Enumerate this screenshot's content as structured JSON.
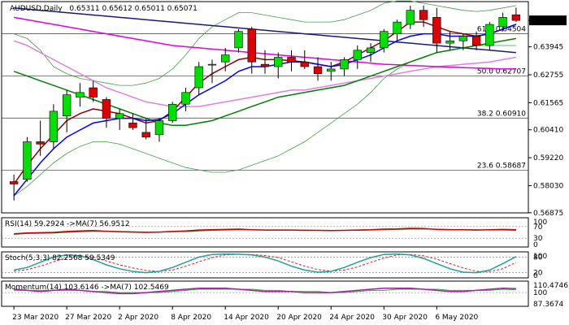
{
  "header": {
    "symbol_label": "AUDUSD,Daily",
    "ohlc_label": "0.65311 0.65612 0.65011 0.65071"
  },
  "colors": {
    "bull": "#00e000",
    "bear": "#e00000",
    "ma_fast": "#0000ff",
    "ma_mid": "#8b0000",
    "ma_slow": "#008000",
    "ma_long": "#e000e0",
    "bb_upper": "#1a1a7a",
    "bb_mid": "#e080e0",
    "bb_env": "#40a040",
    "rsi": "#cc0000",
    "rsi_ma": "#556b2f",
    "stoch_main": "#20a0a0",
    "stoch_signal": "#e02020",
    "mom": "#a020a0",
    "mom_ma": "#40a040"
  },
  "chart_data": {
    "type": "candlestick",
    "ylim": [
      0.5687,
      0.6587
    ],
    "price_labels": [
      "0.65071",
      "0.63945",
      "0.62755",
      "0.61565",
      "0.60410",
      "0.59220",
      "0.58030",
      "0.56875"
    ],
    "current_price": "0.65071",
    "fib_levels": [
      {
        "label": "61.8 0.64504",
        "value": 0.64504
      },
      {
        "label": "50.0 0.62707",
        "value": 0.62707
      },
      {
        "label": "38.2 0.60910",
        "value": 0.6091
      },
      {
        "label": "23.6 0.58687",
        "value": 0.58687
      }
    ],
    "candles": [
      {
        "o": 0.582,
        "h": 0.585,
        "l": 0.574,
        "c": 0.581
      },
      {
        "o": 0.583,
        "h": 0.601,
        "l": 0.582,
        "c": 0.599
      },
      {
        "o": 0.599,
        "h": 0.608,
        "l": 0.593,
        "c": 0.598
      },
      {
        "o": 0.599,
        "h": 0.615,
        "l": 0.596,
        "c": 0.612
      },
      {
        "o": 0.61,
        "h": 0.621,
        "l": 0.603,
        "c": 0.619
      },
      {
        "o": 0.618,
        "h": 0.624,
        "l": 0.614,
        "c": 0.62
      },
      {
        "o": 0.622,
        "h": 0.625,
        "l": 0.616,
        "c": 0.618
      },
      {
        "o": 0.617,
        "h": 0.618,
        "l": 0.605,
        "c": 0.609
      },
      {
        "o": 0.609,
        "h": 0.613,
        "l": 0.604,
        "c": 0.611
      },
      {
        "o": 0.607,
        "h": 0.611,
        "l": 0.604,
        "c": 0.605
      },
      {
        "o": 0.603,
        "h": 0.609,
        "l": 0.6,
        "c": 0.601
      },
      {
        "o": 0.602,
        "h": 0.609,
        "l": 0.599,
        "c": 0.608
      },
      {
        "o": 0.608,
        "h": 0.616,
        "l": 0.607,
        "c": 0.615
      },
      {
        "o": 0.615,
        "h": 0.622,
        "l": 0.612,
        "c": 0.62
      },
      {
        "o": 0.622,
        "h": 0.633,
        "l": 0.619,
        "c": 0.631
      },
      {
        "o": 0.632,
        "h": 0.634,
        "l": 0.624,
        "c": 0.632
      },
      {
        "o": 0.633,
        "h": 0.639,
        "l": 0.629,
        "c": 0.636
      },
      {
        "o": 0.639,
        "h": 0.647,
        "l": 0.637,
        "c": 0.646
      },
      {
        "o": 0.647,
        "h": 0.648,
        "l": 0.628,
        "c": 0.633
      },
      {
        "o": 0.632,
        "h": 0.638,
        "l": 0.628,
        "c": 0.631
      },
      {
        "o": 0.631,
        "h": 0.637,
        "l": 0.626,
        "c": 0.635
      },
      {
        "o": 0.635,
        "h": 0.638,
        "l": 0.629,
        "c": 0.633
      },
      {
        "o": 0.633,
        "h": 0.638,
        "l": 0.63,
        "c": 0.631
      },
      {
        "o": 0.631,
        "h": 0.635,
        "l": 0.625,
        "c": 0.628
      },
      {
        "o": 0.629,
        "h": 0.633,
        "l": 0.625,
        "c": 0.63
      },
      {
        "o": 0.63,
        "h": 0.635,
        "l": 0.627,
        "c": 0.634
      },
      {
        "o": 0.634,
        "h": 0.64,
        "l": 0.63,
        "c": 0.638
      },
      {
        "o": 0.637,
        "h": 0.641,
        "l": 0.633,
        "c": 0.639
      },
      {
        "o": 0.639,
        "h": 0.647,
        "l": 0.637,
        "c": 0.646
      },
      {
        "o": 0.645,
        "h": 0.651,
        "l": 0.642,
        "c": 0.65
      },
      {
        "o": 0.649,
        "h": 0.657,
        "l": 0.647,
        "c": 0.655
      },
      {
        "o": 0.655,
        "h": 0.657,
        "l": 0.648,
        "c": 0.651
      },
      {
        "o": 0.652,
        "h": 0.656,
        "l": 0.637,
        "c": 0.641
      },
      {
        "o": 0.641,
        "h": 0.646,
        "l": 0.638,
        "c": 0.642
      },
      {
        "o": 0.642,
        "h": 0.645,
        "l": 0.638,
        "c": 0.644
      },
      {
        "o": 0.644,
        "h": 0.646,
        "l": 0.638,
        "c": 0.64
      },
      {
        "o": 0.64,
        "h": 0.65,
        "l": 0.638,
        "c": 0.649
      },
      {
        "o": 0.648,
        "h": 0.654,
        "l": 0.646,
        "c": 0.652
      },
      {
        "o": 0.6531,
        "h": 0.6561,
        "l": 0.6501,
        "c": 0.6507
      }
    ],
    "x_labels": [
      {
        "index": 0,
        "label": "23 Mar 2020"
      },
      {
        "index": 4,
        "label": "27 Mar 2020"
      },
      {
        "index": 8,
        "label": "2 Apr 2020"
      },
      {
        "index": 12,
        "label": "8 Apr 2020"
      },
      {
        "index": 16,
        "label": "14 Apr 2020"
      },
      {
        "index": 20,
        "label": "20 Apr 2020"
      },
      {
        "index": 24,
        "label": "24 Apr 2020"
      },
      {
        "index": 28,
        "label": "30 Apr 2020"
      },
      {
        "index": 32,
        "label": "6 May 2020"
      }
    ],
    "sma_fast": [
      0.576,
      0.583,
      0.59,
      0.596,
      0.601,
      0.604,
      0.607,
      0.608,
      0.609,
      0.609,
      0.608,
      0.6085,
      0.611,
      0.615,
      0.619,
      0.622,
      0.625,
      0.629,
      0.631,
      0.631,
      0.632,
      0.633,
      0.633,
      0.632,
      0.631,
      0.632,
      0.634,
      0.636,
      0.639,
      0.642,
      0.644,
      0.645,
      0.645,
      0.644,
      0.644,
      0.644,
      0.645,
      0.647,
      0.649
    ],
    "sma_mid": [
      0.581,
      0.589,
      0.596,
      0.602,
      0.608,
      0.611,
      0.613,
      0.612,
      0.611,
      0.609,
      0.607,
      0.608,
      0.612,
      0.618,
      0.624,
      0.628,
      0.631,
      0.634,
      0.635,
      0.634,
      0.634,
      0.6335,
      0.633,
      0.632,
      0.631,
      0.633,
      0.636,
      0.639,
      0.642,
      0.646,
      0.65,
      0.65,
      0.648,
      0.646,
      0.645,
      0.644,
      0.645,
      0.647,
      0.649
    ],
    "sma_slow": [
      0.629,
      0.627,
      0.625,
      0.623,
      0.621,
      0.619,
      0.617,
      0.615,
      0.613,
      0.611,
      0.609,
      0.607,
      0.606,
      0.606,
      0.607,
      0.608,
      0.61,
      0.612,
      0.614,
      0.616,
      0.618,
      0.619,
      0.62,
      0.621,
      0.622,
      0.623,
      0.625,
      0.627,
      0.629,
      0.631,
      0.633,
      0.635,
      0.637,
      0.638,
      0.639,
      0.64,
      0.641,
      0.642,
      0.643
    ],
    "sma_long": [
      0.652,
      0.651,
      0.65,
      0.649,
      0.648,
      0.647,
      0.646,
      0.645,
      0.644,
      0.643,
      0.642,
      0.641,
      0.64,
      0.6395,
      0.639,
      0.6385,
      0.638,
      0.6375,
      0.637,
      0.6365,
      0.636,
      0.6355,
      0.635,
      0.6345,
      0.634,
      0.6335,
      0.633,
      0.6325,
      0.632,
      0.6318,
      0.6315,
      0.6313,
      0.631,
      0.6308,
      0.6306,
      0.6304,
      0.6302,
      0.63,
      0.63
    ],
    "bb_upper_line": [
      0.656,
      0.6555,
      0.655,
      0.6545,
      0.654,
      0.6535,
      0.653,
      0.6525,
      0.652,
      0.6515,
      0.651,
      0.6505,
      0.65,
      0.6495,
      0.649,
      0.6485,
      0.648,
      0.6475,
      0.647,
      0.6465,
      0.646,
      0.6455,
      0.645,
      0.6445,
      0.644,
      0.6435,
      0.643,
      0.6425,
      0.642,
      0.6415,
      0.641,
      0.6405,
      0.64,
      0.6395,
      0.639,
      0.6385,
      0.638,
      0.6375,
      0.637
    ],
    "bb_mid_line": [
      0.642,
      0.64,
      0.637,
      0.634,
      0.631,
      0.628,
      0.625,
      0.622,
      0.62,
      0.618,
      0.616,
      0.615,
      0.614,
      0.614,
      0.614,
      0.615,
      0.616,
      0.617,
      0.618,
      0.619,
      0.62,
      0.621,
      0.621,
      0.622,
      0.623,
      0.624,
      0.625,
      0.626,
      0.627,
      0.628,
      0.629,
      0.63,
      0.631,
      0.6315,
      0.632,
      0.6325,
      0.633,
      0.634,
      0.635
    ],
    "env_upper": [
      0.645,
      0.643,
      0.638,
      0.631,
      0.628,
      0.626,
      0.625,
      0.624,
      0.623,
      0.623,
      0.624,
      0.626,
      0.63,
      0.636,
      0.643,
      0.648,
      0.651,
      0.654,
      0.654,
      0.653,
      0.652,
      0.651,
      0.65,
      0.65,
      0.65,
      0.651,
      0.653,
      0.655,
      0.658,
      0.659,
      0.659,
      0.658,
      0.657,
      0.656,
      0.655,
      0.6545,
      0.655,
      0.656,
      0.657
    ],
    "env_lower": [
      0.576,
      0.58,
      0.585,
      0.59,
      0.594,
      0.597,
      0.599,
      0.599,
      0.598,
      0.596,
      0.594,
      0.592,
      0.59,
      0.588,
      0.587,
      0.586,
      0.586,
      0.587,
      0.589,
      0.591,
      0.593,
      0.596,
      0.599,
      0.603,
      0.607,
      0.611,
      0.615,
      0.62,
      0.626,
      0.63,
      0.633,
      0.635,
      0.637,
      0.638,
      0.639,
      0.64,
      0.64,
      0.64,
      0.64
    ],
    "rsi": {
      "label": "RSI(14) 59.2924 ->MA(7) 56.9512",
      "ylim": [
        0,
        100
      ],
      "ticks": [
        "100",
        "70",
        "30",
        "0"
      ],
      "values": [
        45,
        48,
        49,
        50,
        53,
        55,
        56,
        54,
        52,
        51,
        50,
        51,
        53,
        55,
        58,
        59,
        60,
        61,
        59,
        58,
        58,
        58,
        57,
        57,
        56,
        57,
        58,
        59,
        61,
        62,
        64,
        63,
        60,
        59,
        59,
        58,
        59,
        60,
        59
      ],
      "ma_values": [
        43,
        46,
        47,
        48,
        50,
        52,
        54,
        54,
        53,
        52,
        51,
        51,
        52,
        53,
        55,
        57,
        58,
        59,
        59,
        58,
        58,
        58,
        58,
        57,
        57,
        57,
        57,
        58,
        59,
        60,
        61,
        61,
        61,
        60,
        59,
        59,
        58,
        58,
        57
      ]
    },
    "stoch": {
      "label": "Stoch(5,3,3) 82.2568 59.5349",
      "ylim": [
        0,
        100
      ],
      "ticks": [
        "100",
        "80",
        "20",
        "0"
      ],
      "main": [
        30,
        40,
        60,
        80,
        88,
        85,
        70,
        50,
        35,
        25,
        20,
        25,
        40,
        60,
        80,
        90,
        92,
        91,
        88,
        80,
        65,
        45,
        30,
        22,
        25,
        40,
        60,
        78,
        90,
        92,
        88,
        75,
        55,
        35,
        22,
        20,
        30,
        55,
        82
      ],
      "signal": [
        25,
        32,
        45,
        62,
        78,
        85,
        80,
        65,
        50,
        38,
        28,
        25,
        30,
        45,
        62,
        78,
        88,
        91,
        90,
        86,
        78,
        62,
        45,
        32,
        26,
        30,
        42,
        60,
        76,
        88,
        90,
        85,
        72,
        55,
        38,
        25,
        24,
        35,
        60
      ]
    },
    "momentum": {
      "label": "Momentum(14) 103.6146 ->MA(7) 102.5469",
      "ylim": [
        87.3674,
        110.4746
      ],
      "ticks": [
        "110.4746",
        "100",
        "87.3674"
      ],
      "values": [
        103,
        102,
        101,
        102,
        103,
        102,
        101,
        100,
        99,
        99,
        100,
        101,
        102,
        103,
        104,
        104,
        104,
        103,
        102,
        101,
        101,
        101,
        100,
        100,
        100,
        101,
        102,
        103,
        104,
        104,
        104,
        103,
        102,
        101,
        101,
        102,
        103,
        104,
        103.6
      ],
      "ma_values": [
        102,
        102,
        102,
        102,
        102,
        102,
        101,
        101,
        100,
        100,
        100,
        100,
        101,
        102,
        103,
        103,
        103,
        103,
        103,
        102,
        102,
        101,
        101,
        101,
        100,
        100,
        101,
        102,
        102,
        103,
        103,
        103,
        103,
        102,
        102,
        102,
        102,
        103,
        102.5
      ]
    }
  }
}
